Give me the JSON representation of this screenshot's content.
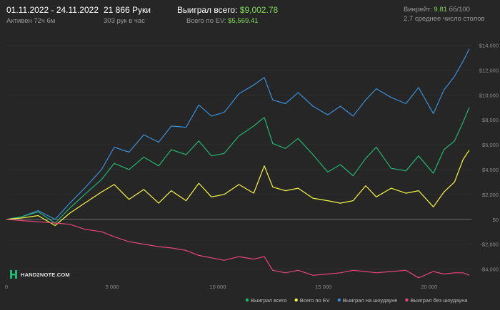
{
  "header": {
    "date_range": "01.11.2022 - 24.11.2022",
    "active_time": "Активен 72ч 6м",
    "hands": "21 866 Руки",
    "hands_per_hour": "303 рук в час",
    "won_total_label": "Выиграл всего:",
    "won_total_value": "$9,002.78",
    "ev_total_label": "Всего по EV:",
    "ev_total_value": "$5,569.41",
    "winrate_label": "Винрейт:",
    "winrate_value": "9.81",
    "winrate_suffix": "бб/100",
    "avg_tables": "2.7 среднее число столов"
  },
  "logo": {
    "text": "HAND2NOTE.COM"
  },
  "colors": {
    "background": "#262626",
    "won_total": "#22b573",
    "ev_total": "#f5f542",
    "showdown": "#3a8fd8",
    "non_showdown": "#e8457c",
    "accent": "#7ed957"
  },
  "chart_data": {
    "type": "line",
    "xlim": [
      0,
      22000
    ],
    "ylim": [
      -5000,
      15000
    ],
    "x_ticks": [
      0,
      5000,
      10000,
      15000,
      20000
    ],
    "x_tick_labels": [
      "0",
      "5 000",
      "10 000",
      "15 000",
      "20 000"
    ],
    "y_ticks": [
      -4000,
      -2000,
      0,
      2000,
      4000,
      6000,
      8000,
      10000,
      12000,
      14000
    ],
    "y_tick_labels": [
      "-$4,000",
      "-$2,000",
      "$0",
      "$2,000",
      "$4,000",
      "$6,000",
      "$8,000",
      "$10,000",
      "$12,000",
      "$14,000"
    ],
    "grid": "horizontal",
    "legend_position": "bottom-right",
    "series": [
      {
        "name": "Выиграл всего",
        "color": "#22b573",
        "x": [
          0,
          700,
          1500,
          2300,
          3000,
          3700,
          4500,
          5100,
          5800,
          6500,
          7200,
          7800,
          8500,
          9100,
          9700,
          10300,
          11000,
          11700,
          12200,
          12600,
          13200,
          13800,
          14500,
          15200,
          15800,
          16400,
          17000,
          17500,
          18200,
          18900,
          19500,
          20200,
          20700,
          21200,
          21600,
          21900
        ],
        "y": [
          0,
          200,
          600,
          -300,
          900,
          2000,
          3200,
          4500,
          4000,
          5000,
          4300,
          5600,
          5200,
          6300,
          5100,
          5300,
          6700,
          7500,
          8200,
          6100,
          5700,
          6500,
          5200,
          3800,
          4400,
          3500,
          4900,
          5800,
          4100,
          3900,
          5100,
          3700,
          5600,
          6300,
          7800,
          9000
        ]
      },
      {
        "name": "Всего по EV",
        "color": "#f5f542",
        "x": [
          0,
          700,
          1500,
          2300,
          3000,
          3700,
          4500,
          5100,
          5800,
          6500,
          7200,
          7800,
          8500,
          9100,
          9700,
          10300,
          11000,
          11700,
          12200,
          12600,
          13200,
          13800,
          14500,
          15200,
          15800,
          16400,
          17000,
          17500,
          18200,
          18900,
          19500,
          20200,
          20700,
          21200,
          21600,
          21900
        ],
        "y": [
          0,
          100,
          300,
          -500,
          500,
          1300,
          2200,
          2800,
          1600,
          2400,
          1300,
          2300,
          1500,
          2900,
          1800,
          2000,
          2800,
          2100,
          4300,
          2600,
          2300,
          2500,
          1700,
          1500,
          1300,
          1500,
          2700,
          1800,
          2500,
          2100,
          2300,
          1000,
          2200,
          3000,
          4800,
          5569
        ]
      },
      {
        "name": "Выиграл на шоудауне",
        "color": "#3a8fd8",
        "x": [
          0,
          700,
          1500,
          2300,
          3000,
          3700,
          4500,
          5100,
          5800,
          6500,
          7200,
          7800,
          8500,
          9100,
          9700,
          10300,
          11000,
          11700,
          12200,
          12600,
          13200,
          13800,
          14500,
          15200,
          15800,
          16400,
          17000,
          17500,
          18200,
          18900,
          19500,
          20200,
          20700,
          21200,
          21600,
          21900
        ],
        "y": [
          0,
          200,
          700,
          0,
          1300,
          2500,
          4000,
          5800,
          5400,
          6800,
          6200,
          7500,
          7400,
          9200,
          8300,
          8600,
          10100,
          10800,
          11400,
          9600,
          9300,
          10200,
          9100,
          8400,
          9100,
          8300,
          9600,
          10500,
          9800,
          9300,
          10600,
          8500,
          10400,
          11500,
          12700,
          13700
        ]
      },
      {
        "name": "Выиграл без шоудауна",
        "color": "#e8457c",
        "x": [
          0,
          700,
          1500,
          2300,
          3000,
          3700,
          4500,
          5100,
          5800,
          6500,
          7200,
          7800,
          8500,
          9100,
          9700,
          10300,
          11000,
          11700,
          12200,
          12600,
          13200,
          13800,
          14500,
          15200,
          15800,
          16400,
          17000,
          17500,
          18200,
          18900,
          19500,
          20200,
          20700,
          21200,
          21600,
          21900
        ],
        "y": [
          0,
          -100,
          -200,
          -300,
          -400,
          -800,
          -1000,
          -1400,
          -1800,
          -2000,
          -2200,
          -2300,
          -2500,
          -2900,
          -3100,
          -3300,
          -3000,
          -3200,
          -3000,
          -4100,
          -4300,
          -4100,
          -4500,
          -4400,
          -4300,
          -4100,
          -4200,
          -4300,
          -4200,
          -4100,
          -4700,
          -4200,
          -4400,
          -4300,
          -4300,
          -4500
        ]
      }
    ]
  }
}
